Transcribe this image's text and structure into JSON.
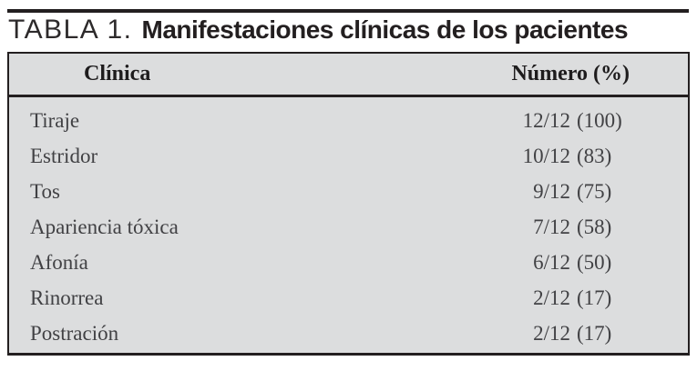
{
  "page": {
    "table_label": "TABLA 1.",
    "table_title": "Manifestaciones clínicas de los pacientes"
  },
  "table": {
    "columns": {
      "clinica": "Clínica",
      "numero": "Número (%)"
    },
    "rows": [
      {
        "label": "Tiraje",
        "fraction": "12/12",
        "percent": "(100)"
      },
      {
        "label": "Estridor",
        "fraction": "10/12",
        "percent": "(83)"
      },
      {
        "label": "Tos",
        "fraction": "9/12",
        "percent": "(75)"
      },
      {
        "label": "Apariencia tóxica",
        "fraction": "7/12",
        "percent": "(58)"
      },
      {
        "label": "Afonía",
        "fraction": "6/12",
        "percent": "(50)"
      },
      {
        "label": "Rinorrea",
        "fraction": "2/12",
        "percent": "(17)"
      },
      {
        "label": "Postración",
        "fraction": "2/12",
        "percent": "(17)"
      }
    ]
  },
  "colors": {
    "table_fill": "#dcddde",
    "rule_and_border": "#231f20",
    "header_text": "#1e1c1d",
    "body_text": "#414144"
  }
}
